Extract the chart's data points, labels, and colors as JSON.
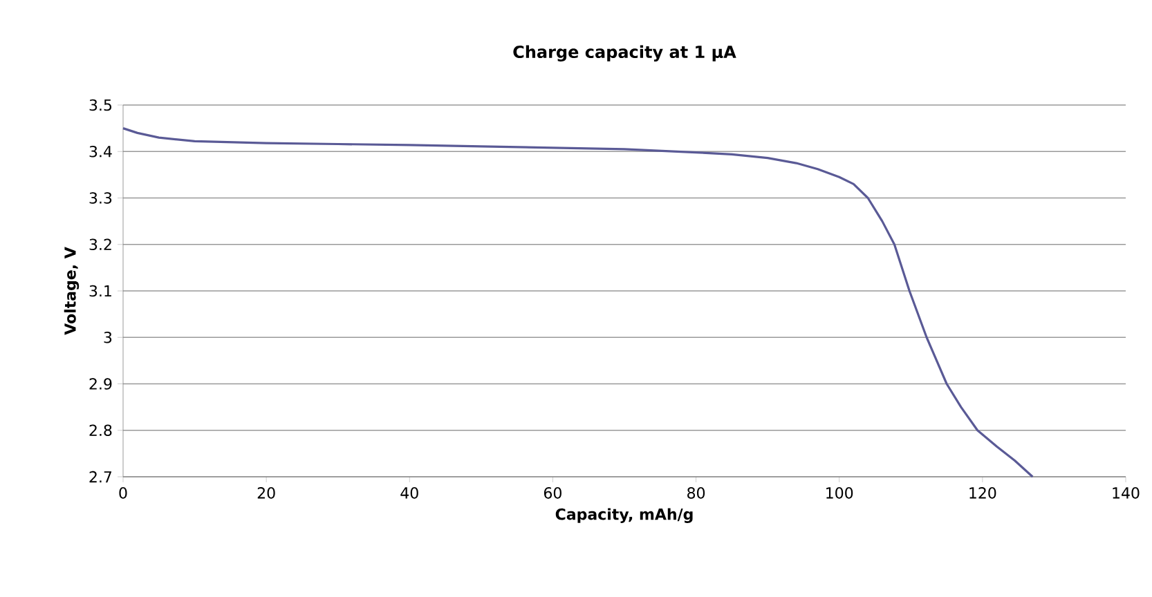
{
  "chart_data": {
    "type": "line",
    "title": "Charge capacity at 1 μA",
    "xlabel": "Capacity, mAh/g",
    "ylabel": "Voltage, V",
    "xlim": [
      0,
      140
    ],
    "xticks": [
      0,
      20,
      40,
      60,
      80,
      100,
      120,
      140
    ],
    "ylim": [
      2.7,
      3.5
    ],
    "yticks": [
      2.7,
      {
        "value": 2.8,
        "label": "2.8"
      },
      {
        "value": 2.9,
        "label": "2.9"
      },
      {
        "value": 3.0,
        "label": "3"
      },
      {
        "value": 3.1,
        "label": "3.1"
      },
      {
        "value": 3.2,
        "label": "3.2"
      },
      {
        "value": 3.3,
        "label": "3.3"
      },
      {
        "value": 3.4,
        "label": "3.4"
      },
      {
        "value": 3.5,
        "label": "3.5"
      }
    ],
    "grid": "y",
    "marker": "none",
    "line_style": "solid",
    "series": [
      {
        "color": "#5a5a96",
        "x": [
          0,
          2,
          5,
          10,
          20,
          30,
          40,
          50,
          60,
          70,
          80,
          85,
          90,
          94,
          97,
          100,
          102,
          104,
          106,
          107.7,
          109.8,
          112.2,
          115,
          117,
          119.3,
          122,
          124.5,
          127
        ],
        "values": [
          3.45,
          3.44,
          3.43,
          3.422,
          3.418,
          3.416,
          3.414,
          3.411,
          3.408,
          3.405,
          3.398,
          3.394,
          3.386,
          3.375,
          3.362,
          3.345,
          3.33,
          3.3,
          3.25,
          3.2,
          3.1,
          3.0,
          2.9,
          2.85,
          2.8,
          2.765,
          2.735,
          2.7
        ]
      }
    ]
  }
}
